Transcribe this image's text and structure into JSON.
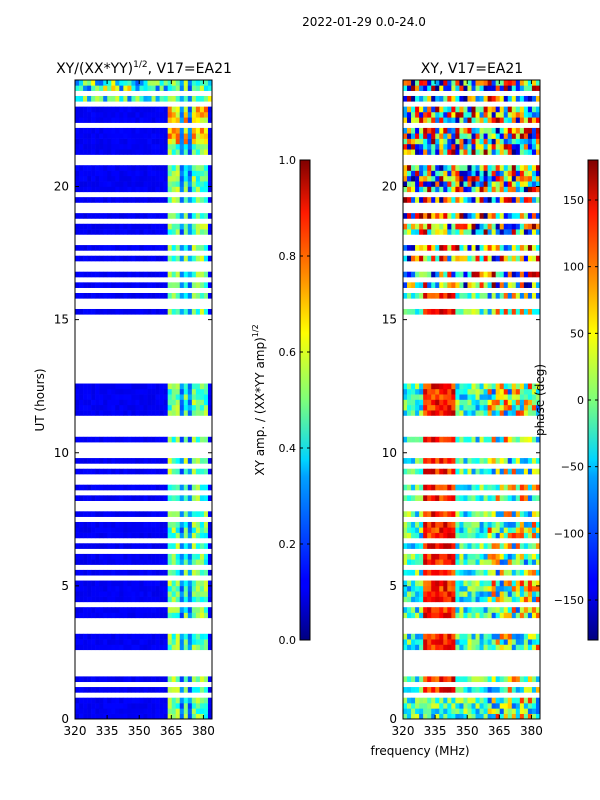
{
  "figure": {
    "suptitle": "2022-01-29 0.0-24.0",
    "xlabel_shared": "frequency (MHz)"
  },
  "chart_data": [
    {
      "type": "heatmap",
      "id": "amp",
      "title_base": "XY/(XX*YY)",
      "title_exponent": "1/2",
      "title_suffix": ", V17=EA21",
      "xlabel": "",
      "ylabel": "UT (hours)",
      "xlim": [
        320,
        384
      ],
      "ylim": [
        0,
        24
      ],
      "xticks": [
        320,
        335,
        350,
        365,
        380
      ],
      "yticks": [
        0,
        5,
        10,
        15,
        20
      ],
      "colorbar": {
        "label_base": "XY amp. / (XX*YY amp)",
        "label_exponent": "1/2",
        "range": [
          0.0,
          1.0
        ],
        "ticks": [
          "0.0",
          "0.2",
          "0.4",
          "0.6",
          "0.8",
          "1.0"
        ],
        "tick_values": [
          0.0,
          0.2,
          0.4,
          0.6,
          0.8,
          1.0
        ]
      },
      "colormap": "jet",
      "background_value": 0.1
    },
    {
      "type": "heatmap",
      "id": "phase",
      "title": "XY, V17=EA21",
      "xlabel": "",
      "ylabel": "",
      "xlim": [
        320,
        384
      ],
      "ylim": [
        0,
        24
      ],
      "xticks": [
        320,
        335,
        350,
        365,
        380
      ],
      "yticks": [
        0,
        5,
        10,
        15,
        20
      ],
      "colorbar": {
        "label": "phase (deg)",
        "range": [
          -180,
          180
        ],
        "ticks": [
          "−150",
          "−100",
          "−50",
          "0",
          "50",
          "100",
          "150"
        ],
        "tick_values": [
          -150,
          -100,
          -50,
          0,
          50,
          100,
          150
        ]
      },
      "colormap": "jet"
    }
  ],
  "flagged_rows_ut_hours": [
    23.55,
    23.1,
    22.4,
    21.2,
    20.8,
    20.0,
    19.6,
    19.4,
    19.2,
    19.0,
    18.7,
    18.1,
    17.8,
    17.5,
    17.2,
    16.9,
    16.5,
    16.1,
    15.7,
    15.5,
    15.1,
    14.8,
    14.6,
    14.4,
    14.2,
    13.9,
    13.6,
    13.3,
    13.0,
    12.7,
    11.3,
    11.0,
    10.7,
    10.3,
    10.0,
    9.5,
    9.0,
    8.5,
    8.0,
    7.5,
    6.8,
    6.3,
    5.8,
    5.3,
    4.2,
    3.8,
    3.5,
    3.2,
    2.5,
    2.3,
    2.1,
    1.9,
    1.7,
    1.4,
    0.9
  ],
  "bright_channels_mhz": [
    365,
    368,
    372,
    376,
    380
  ]
}
